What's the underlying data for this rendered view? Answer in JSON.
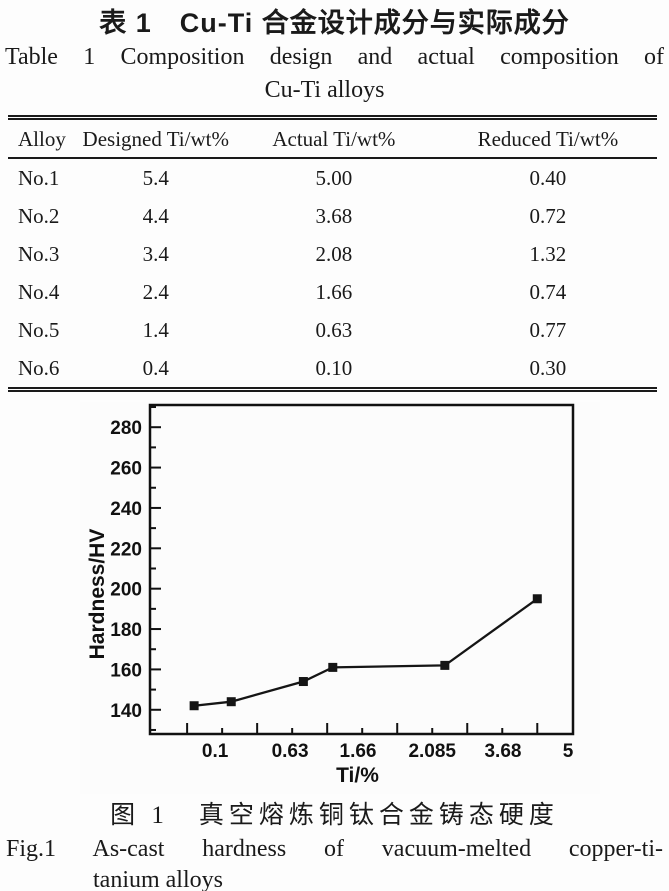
{
  "table_section": {
    "title_zh": "表 1　Cu-Ti 合金设计成分与实际成分",
    "title_en_line1": "Table 1 Composition design and actual composition of",
    "title_en_line2": "Cu-Ti alloys",
    "columns": [
      "Alloy",
      "Designed Ti/wt%",
      "Actual Ti/wt%",
      "Reduced Ti/wt%"
    ],
    "rows": [
      [
        "No.1",
        "5.4",
        "5.00",
        "0.40"
      ],
      [
        "No.2",
        "4.4",
        "3.68",
        "0.72"
      ],
      [
        "No.3",
        "3.4",
        "2.08",
        "1.32"
      ],
      [
        "No.4",
        "2.4",
        "1.66",
        "0.74"
      ],
      [
        "No.5",
        "1.4",
        "0.63",
        "0.77"
      ],
      [
        "No.6",
        "0.4",
        "0.10",
        "0.30"
      ]
    ]
  },
  "figure_section": {
    "caption_zh": "图 1　真空熔炼铜钛合金铸态硬度",
    "caption_en_line1": "Fig.1 As-cast hardness of vacuum-melted copper-ti-",
    "caption_en_line2": "tanium alloys"
  },
  "chart_data": {
    "type": "line",
    "title": "",
    "xlabel": "Ti/%",
    "ylabel": "Hardness/HV",
    "x": [
      0.1,
      0.63,
      1.66,
      2.08,
      3.68,
      5.0
    ],
    "y": [
      142,
      144,
      154,
      161,
      162,
      195
    ],
    "xlim": [
      -0.53,
      5.51
    ],
    "ylim": [
      128,
      291
    ],
    "y_major_ticks": [
      140,
      160,
      180,
      200,
      220,
      240,
      260,
      280
    ],
    "y_minor_ticks": [
      130,
      150,
      170,
      190,
      210,
      230,
      250,
      270,
      290
    ],
    "x_major_ticks": [
      0,
      1,
      2,
      3,
      4,
      5
    ],
    "x_minor_ticks": [
      0.5,
      1.5,
      2.5,
      3.5,
      4.5
    ],
    "x_tick_labels": [
      {
        "text": "0.1",
        "pos": 0.4
      },
      {
        "text": "0.63",
        "pos": 1.47
      },
      {
        "text": "1.66",
        "pos": 2.44
      },
      {
        "text": "2.085",
        "pos": 3.5
      },
      {
        "text": "3.68",
        "pos": 4.51
      },
      {
        "text": "5",
        "pos": 5.44
      }
    ],
    "marker": "square",
    "line_color": "#151515",
    "grid": false,
    "legend": null
  }
}
